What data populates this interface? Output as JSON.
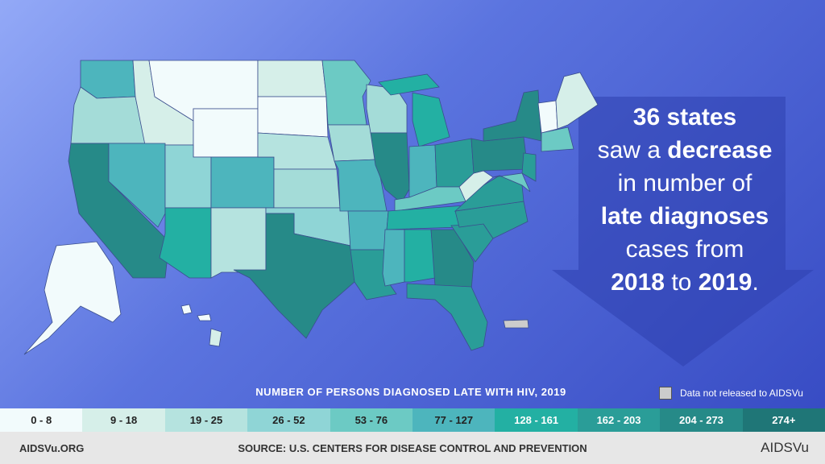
{
  "callout": {
    "lines": [
      [
        "36 states"
      ],
      [
        "saw a",
        "decrease"
      ],
      [
        "in number of"
      ],
      [
        "late diagnoses"
      ],
      [
        "cases from"
      ],
      [
        "2018",
        "to",
        "2019",
        "."
      ]
    ]
  },
  "legend": {
    "title": "NUMBER OF PERSONS DIAGNOSED LATE WITH HIV, 2019",
    "no_data": "Data not released to AIDSVu",
    "bins": [
      {
        "label": "0 - 8",
        "color": "#f2fbfc"
      },
      {
        "label": "9 - 18",
        "color": "#d6efe9"
      },
      {
        "label": "19 - 25",
        "color": "#b5e3df"
      },
      {
        "label": "26 - 52",
        "color": "#8fd5d6"
      },
      {
        "label": "53 - 76",
        "color": "#6ccac4"
      },
      {
        "label": "77 - 127",
        "color": "#4db5bd"
      },
      {
        "label": "128 - 161",
        "color": "#23b0a3"
      },
      {
        "label": "162 - 203",
        "color": "#2a9d98"
      },
      {
        "label": "204 - 273",
        "color": "#268a88"
      },
      {
        "label": "274+",
        "color": "#1f7677"
      }
    ]
  },
  "footer": {
    "site": "AIDSVu.ORG",
    "source": "SOURCE: U.S. CENTERS FOR DISEASE CONTROL AND PREVENTION",
    "logo": "AIDSVu"
  }
}
